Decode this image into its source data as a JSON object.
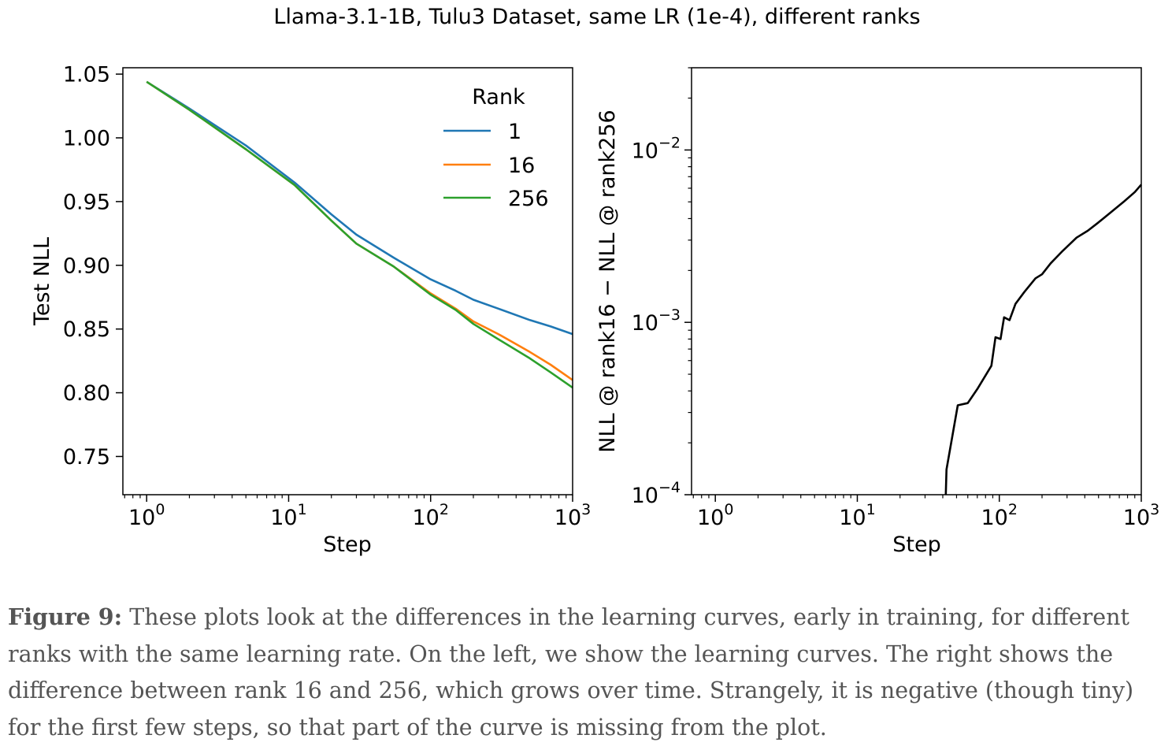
{
  "title": "Llama-3.1-1B, Tulu3 Dataset, same LR (1e-4), different ranks",
  "chart_data": [
    {
      "type": "line",
      "xscale": "log",
      "xlabel": "Step",
      "ylabel": "Test NLL",
      "xlim": [
        0.68,
        1000
      ],
      "ylim": [
        0.72,
        1.055
      ],
      "x_ticks": [
        {
          "value": 1,
          "base": "10",
          "exp": "0"
        },
        {
          "value": 10,
          "base": "10",
          "exp": "1"
        },
        {
          "value": 100,
          "base": "10",
          "exp": "2"
        },
        {
          "value": 1000,
          "base": "10",
          "exp": "3"
        }
      ],
      "y_ticks": [
        {
          "value": 0.75,
          "label": "0.75"
        },
        {
          "value": 0.8,
          "label": "0.80"
        },
        {
          "value": 0.85,
          "label": "0.85"
        },
        {
          "value": 0.9,
          "label": "0.90"
        },
        {
          "value": 0.95,
          "label": "0.95"
        },
        {
          "value": 1.0,
          "label": "1.00"
        },
        {
          "value": 1.05,
          "label": "1.05"
        }
      ],
      "legend": {
        "title": "Rank",
        "position": "top-right"
      },
      "series": [
        {
          "name": "1",
          "color": "#1f77b4",
          "x": [
            1,
            2,
            5,
            11,
            20,
            30,
            55,
            100,
            150,
            200,
            300,
            500,
            700,
            1000
          ],
          "y": [
            1.044,
            1.023,
            0.994,
            0.965,
            0.94,
            0.924,
            0.906,
            0.889,
            0.88,
            0.873,
            0.866,
            0.857,
            0.852,
            0.846
          ]
        },
        {
          "name": "16",
          "color": "#ff7f0e",
          "x": [
            1,
            2,
            5,
            11,
            20,
            30,
            55,
            100,
            150,
            200,
            300,
            500,
            700,
            1000
          ],
          "y": [
            1.044,
            1.022,
            0.991,
            0.963,
            0.935,
            0.917,
            0.899,
            0.878,
            0.866,
            0.856,
            0.846,
            0.832,
            0.822,
            0.81
          ]
        },
        {
          "name": "256",
          "color": "#2ca02c",
          "x": [
            1,
            2,
            5,
            11,
            20,
            30,
            55,
            100,
            150,
            200,
            300,
            500,
            700,
            1000
          ],
          "y": [
            1.044,
            1.022,
            0.991,
            0.963,
            0.935,
            0.917,
            0.899,
            0.877,
            0.865,
            0.854,
            0.842,
            0.827,
            0.816,
            0.804
          ]
        }
      ]
    },
    {
      "type": "line",
      "xscale": "log",
      "yscale": "log",
      "xlabel": "Step",
      "ylabel": "NLL @ rank16 − NLL @ rank256",
      "xlim": [
        0.68,
        1000
      ],
      "ylim": [
        0.0001,
        0.03
      ],
      "x_ticks": [
        {
          "value": 1,
          "base": "10",
          "exp": "0"
        },
        {
          "value": 10,
          "base": "10",
          "exp": "1"
        },
        {
          "value": 100,
          "base": "10",
          "exp": "2"
        },
        {
          "value": 1000,
          "base": "10",
          "exp": "3"
        }
      ],
      "y_ticks": [
        {
          "value": 0.0001,
          "base": "10",
          "exp": "−4"
        },
        {
          "value": 0.001,
          "base": "10",
          "exp": "−3"
        },
        {
          "value": 0.01,
          "base": "10",
          "exp": "−2"
        }
      ],
      "series": [
        {
          "color": "#000000",
          "x": [
            42,
            42.5,
            51,
            60,
            70,
            88,
            94,
            102,
            108,
            118,
            130,
            150,
            180,
            200,
            230,
            280,
            350,
            420,
            500,
            600,
            750,
            900,
            1000
          ],
          "y": [
            0.0001,
            0.00014,
            0.00033,
            0.00034,
            0.00041,
            0.00056,
            0.00082,
            0.0008,
            0.00107,
            0.00103,
            0.00128,
            0.0015,
            0.0018,
            0.0019,
            0.0022,
            0.0026,
            0.0031,
            0.0034,
            0.0038,
            0.0043,
            0.005,
            0.0057,
            0.0063
          ]
        }
      ]
    }
  ],
  "caption": {
    "label": "Figure 9:",
    "text": " These plots look at the differences in the learning curves, early in training, for different ranks with the same learning rate. On the left, we show the learning curves. The right shows the difference between rank 16 and 256, which grows over time. Strangely, it is negative (though tiny) for the first few steps, so that part of the curve is missing from the plot."
  }
}
